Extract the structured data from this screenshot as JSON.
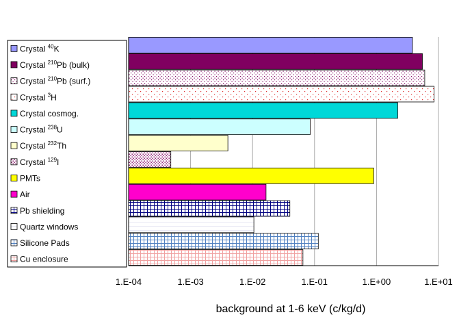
{
  "chart_data": {
    "type": "bar",
    "orientation": "horizontal",
    "xscale": "log",
    "xlim": [
      "1.E-04",
      "1.E+01"
    ],
    "xticks": [
      "1.E-04",
      "1.E-03",
      "1.E-02",
      "1.E-01",
      "1.E+00",
      "1.E+01"
    ],
    "xlabel": "background at 1-6 keV (c/kg/d)",
    "grid": "vertical",
    "legend": "left",
    "series": [
      {
        "label": "Crystal 40K",
        "pre": "Crystal ",
        "sup": "40",
        "post": "K",
        "value": 3.8,
        "fill": "#9999ff",
        "pattern": "solid"
      },
      {
        "label": "Crystal 210Pb (bulk)",
        "pre": "Crystal ",
        "sup": "210",
        "post": "Pb (bulk)",
        "value": 5.5,
        "fill": "#800060",
        "pattern": "solid"
      },
      {
        "label": "Crystal 210Pb (surf.)",
        "pre": "Crystal ",
        "sup": "210",
        "post": "Pb (surf.)",
        "value": 6.0,
        "fill": "#ffffff",
        "pattern": "dots-purple"
      },
      {
        "label": "Crystal 3H",
        "pre": "Crystal ",
        "sup": "3",
        "post": "H",
        "value": 8.5,
        "fill": "#ffffff",
        "pattern": "dots-red"
      },
      {
        "label": "Crystal cosmog.",
        "pre": "Crystal cosmog.",
        "sup": "",
        "post": "",
        "value": 2.2,
        "fill": "#00d8d8",
        "pattern": "solid"
      },
      {
        "label": "Crystal 238U",
        "pre": "Crystal ",
        "sup": "238",
        "post": "U",
        "value": 0.085,
        "fill": "#ccffff",
        "pattern": "solid"
      },
      {
        "label": "Crystal 232Th",
        "pre": "Crystal ",
        "sup": "232",
        "post": "Th",
        "value": 0.004,
        "fill": "#ffffcc",
        "pattern": "solid"
      },
      {
        "label": "Crystal 129I",
        "pre": "Crystal ",
        "sup": "129",
        "post": "I",
        "value": 0.00048,
        "fill": "#ffffff",
        "pattern": "dots-dense"
      },
      {
        "label": "PMTs",
        "pre": "PMTs",
        "sup": "",
        "post": "",
        "value": 0.9,
        "fill": "#ffff00",
        "pattern": "solid"
      },
      {
        "label": "Air",
        "pre": "Air",
        "sup": "",
        "post": "",
        "value": 0.0165,
        "fill": "#ff00cc",
        "pattern": "solid"
      },
      {
        "label": "Pb shielding",
        "pre": "Pb shielding",
        "sup": "",
        "post": "",
        "value": 0.04,
        "fill": "#ffffff",
        "pattern": "grid-navy"
      },
      {
        "label": "Quartz windows",
        "pre": "Quartz windows",
        "sup": "",
        "post": "",
        "value": 0.0105,
        "fill": "#ffffff",
        "pattern": "faint"
      },
      {
        "label": "Silicone Pads",
        "pre": "Silicone Pads",
        "sup": "",
        "post": "",
        "value": 0.115,
        "fill": "#ffffff",
        "pattern": "grid-blue"
      },
      {
        "label": "Cu enclosure",
        "pre": "Cu enclosure",
        "sup": "",
        "post": "",
        "value": 0.065,
        "fill": "#ffffff",
        "pattern": "grid-pink"
      }
    ]
  }
}
